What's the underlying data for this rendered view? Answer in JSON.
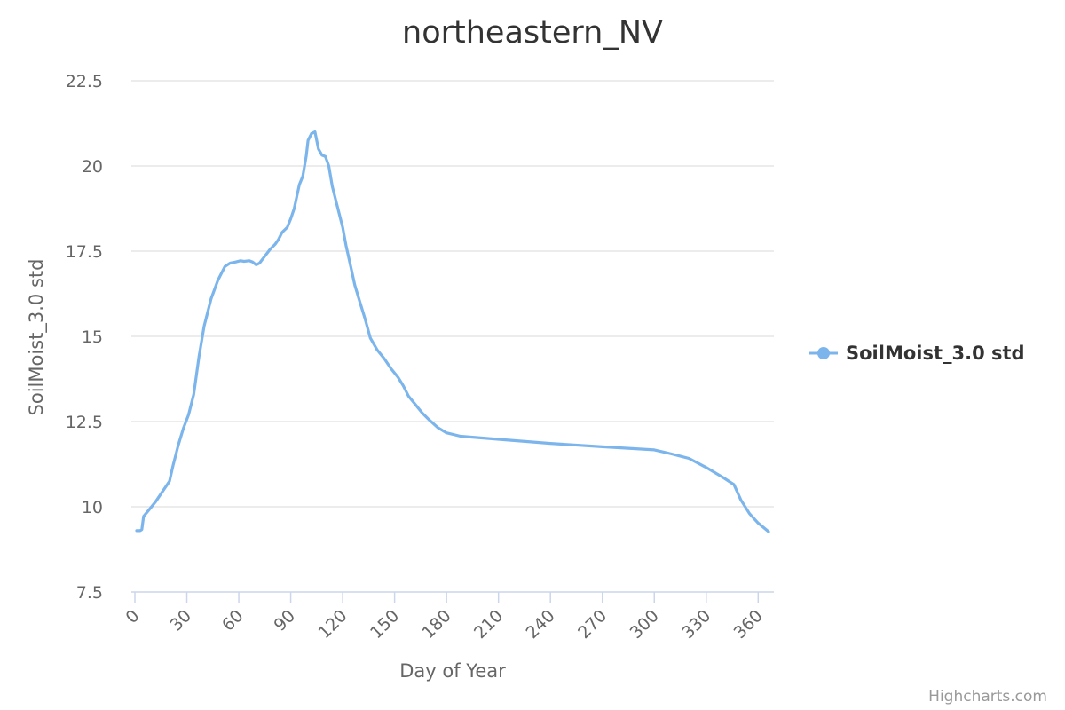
{
  "chart_data": {
    "type": "line",
    "title": "northeastern_NV",
    "xlabel": "Day of Year",
    "ylabel": "SoilMoist_3.0 std",
    "xlim": [
      0,
      366
    ],
    "ylim": [
      7.5,
      22.5
    ],
    "x_ticks": [
      0,
      30,
      60,
      90,
      120,
      150,
      180,
      210,
      240,
      270,
      300,
      330,
      360
    ],
    "y_ticks": [
      7.5,
      10,
      12.5,
      15,
      17.5,
      20,
      22.5
    ],
    "y_tick_labels": [
      "7.5",
      "10",
      "12.5",
      "15",
      "17.5",
      "20",
      "22.5"
    ],
    "grid": "horizontal",
    "legend_position": "right",
    "series": [
      {
        "name": "SoilMoist_3.0 std",
        "color": "#7cb5ec",
        "x": [
          1,
          2,
          3,
          4,
          5,
          8,
          12,
          16,
          20,
          22,
          25,
          28,
          31,
          34,
          37,
          40,
          44,
          48,
          52,
          55,
          58,
          61,
          63,
          66,
          68,
          70,
          72,
          75,
          78,
          81,
          83,
          85,
          88,
          90,
          92,
          95,
          97,
          99,
          100,
          102,
          104,
          106,
          108,
          110,
          112,
          114,
          118,
          120,
          122,
          124,
          127,
          130,
          133,
          136,
          140,
          144,
          148,
          152,
          155,
          158,
          162,
          166,
          170,
          175,
          180,
          188,
          210,
          240,
          270,
          300,
          310,
          320,
          330,
          340,
          346,
          350,
          355,
          360,
          366
        ],
        "values": [
          9.3,
          9.3,
          9.3,
          9.33,
          9.72,
          9.9,
          10.15,
          10.45,
          10.75,
          11.2,
          11.8,
          12.3,
          12.7,
          13.3,
          14.4,
          15.3,
          16.1,
          16.65,
          17.05,
          17.15,
          17.18,
          17.22,
          17.2,
          17.22,
          17.18,
          17.1,
          17.15,
          17.35,
          17.55,
          17.7,
          17.85,
          18.05,
          18.2,
          18.45,
          18.75,
          19.45,
          19.7,
          20.3,
          20.75,
          20.95,
          21.0,
          20.5,
          20.32,
          20.28,
          20.0,
          19.4,
          18.6,
          18.2,
          17.65,
          17.2,
          16.5,
          16.0,
          15.5,
          14.95,
          14.6,
          14.35,
          14.05,
          13.8,
          13.55,
          13.25,
          13.0,
          12.75,
          12.55,
          12.32,
          12.17,
          12.07,
          11.98,
          11.86,
          11.76,
          11.67,
          11.55,
          11.42,
          11.15,
          10.85,
          10.65,
          10.2,
          9.8,
          9.52,
          9.27
        ]
      }
    ]
  },
  "credits": "Highcharts.com"
}
